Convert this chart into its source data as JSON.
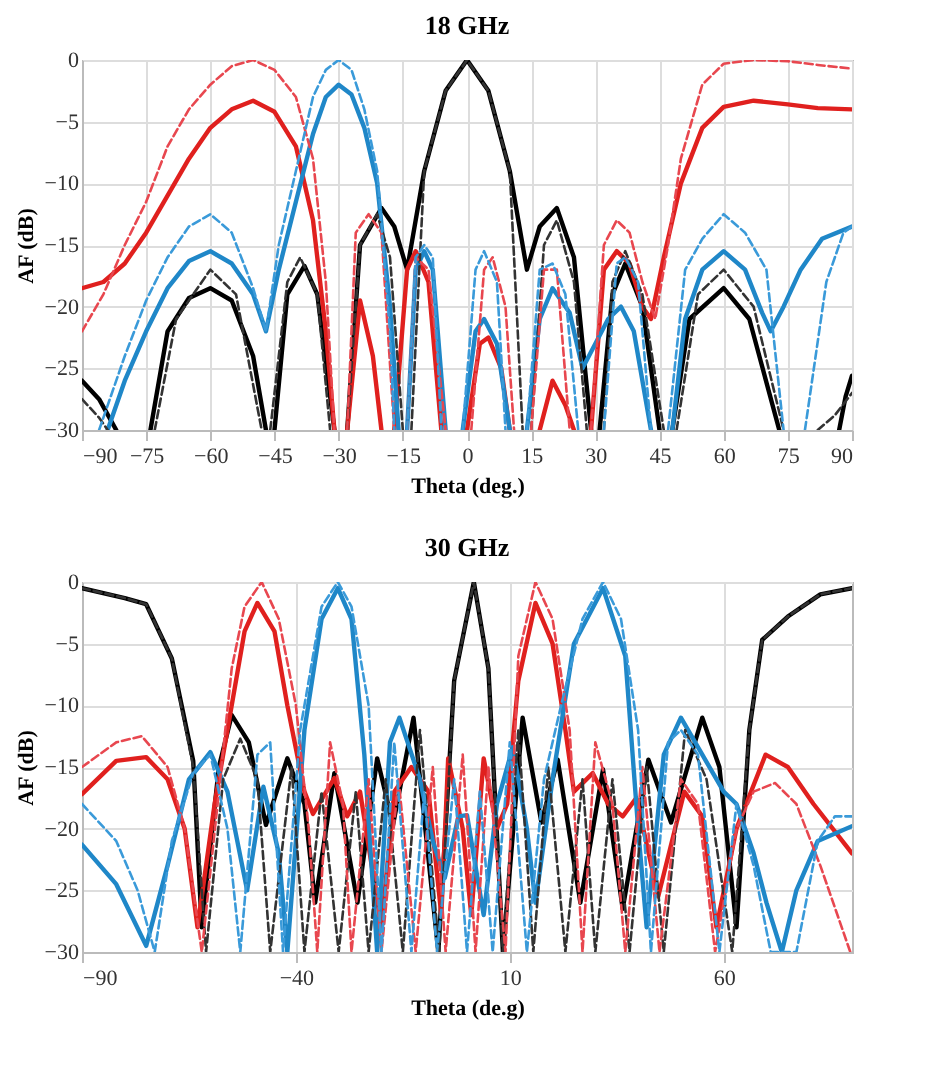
{
  "chart_data": [
    {
      "type": "line",
      "title": "18 GHz",
      "xlabel": "Theta (deg.)",
      "ylabel": "AF (dB)",
      "xlim": [
        -90,
        90
      ],
      "xticks": [
        -90,
        -75,
        -60,
        -45,
        -30,
        -15,
        0,
        15,
        30,
        45,
        60,
        75,
        90
      ],
      "ylim": [
        -30,
        0
      ],
      "yticks": [
        -30,
        -25,
        -20,
        -15,
        -10,
        -5,
        0
      ],
      "grid": true,
      "marker": "none",
      "series": [
        {
          "color": "#000000",
          "line_style": "solid",
          "x": [
            -90,
            -86,
            -82,
            -81,
            -74,
            -70,
            -65,
            -60,
            -55,
            -50,
            -47,
            -46,
            -45,
            -42,
            -38,
            -35,
            -31,
            -30,
            -28,
            -25,
            -20,
            -17,
            -14,
            -10,
            -5,
            0,
            5,
            10,
            14,
            17,
            21,
            25,
            29,
            30,
            31,
            34,
            37,
            41,
            45,
            46,
            48,
            52,
            60,
            66,
            73,
            74,
            87,
            88.5,
            90
          ],
          "values": [
            -26,
            -27.5,
            -30,
            null,
            -30,
            -22,
            -19.3,
            -18.5,
            -19.5,
            -24,
            -30,
            null,
            -30,
            -19,
            -16.7,
            -19,
            -30,
            null,
            -30,
            -15,
            -12,
            -13.5,
            -17,
            -9,
            -2.5,
            0,
            -2.5,
            -9,
            -17,
            -13.5,
            -12,
            -16,
            -30,
            null,
            -30,
            -19,
            -16.5,
            -20,
            -30,
            null,
            -30,
            -21,
            -18.5,
            -21,
            -30,
            null,
            -30,
            -27.3,
            -25.6
          ]
        },
        {
          "color": "#333333",
          "line_style": "dashed",
          "x": [
            -90,
            -86,
            -84,
            -83,
            -73,
            -68,
            -60,
            -54,
            -48,
            -47,
            -46,
            -42,
            -39,
            -35,
            -32,
            -31,
            -28,
            -25,
            -21,
            -18,
            -15,
            -14,
            -13,
            -10,
            -5,
            0,
            5,
            10,
            13,
            14,
            15,
            18,
            21,
            25,
            28,
            29,
            32,
            34,
            37,
            41,
            46,
            47,
            49,
            54,
            60,
            67,
            74,
            75,
            82,
            86,
            90
          ],
          "values": [
            -27.5,
            -29,
            -30,
            null,
            -30,
            -21,
            -17,
            -19,
            -30,
            null,
            -30,
            -18,
            -16,
            -19,
            -30,
            null,
            -30,
            -15,
            -12.5,
            -16,
            -30,
            null,
            -30,
            -9,
            -2.5,
            0,
            -2.5,
            -9,
            -30,
            null,
            -30,
            -15,
            -13,
            -18,
            -30,
            null,
            -30,
            -18,
            -15.5,
            -19,
            -30,
            null,
            -30,
            -19,
            -17,
            -20,
            -30,
            null,
            -30,
            -28.8,
            -27
          ]
        },
        {
          "color": "#e0201e",
          "line_style": "solid",
          "x": [
            -90,
            -85,
            -80,
            -75,
            -70,
            -65,
            -60,
            -55,
            -50,
            -45,
            -40,
            -36,
            -33,
            -31,
            -30,
            -28,
            -25,
            -22,
            -20,
            -19,
            -17,
            -14,
            -12,
            -9,
            -6,
            -5,
            0,
            3,
            5,
            8,
            10,
            11,
            17,
            20,
            23,
            25,
            26,
            29,
            32,
            35,
            38,
            41,
            43,
            46,
            50,
            55,
            60,
            67,
            75,
            82,
            90
          ],
          "values": [
            -18.5,
            -18,
            -16.5,
            -14,
            -11,
            -8,
            -5.5,
            -4,
            -3.3,
            -4.2,
            -7,
            -13,
            -22,
            -30,
            null,
            -30,
            -19.5,
            -24,
            -30,
            null,
            -30,
            -17,
            -15.5,
            -18,
            -30,
            null,
            -30,
            -23,
            -22.5,
            -25,
            -30,
            null,
            -30,
            -26,
            -28,
            -30,
            null,
            -30,
            -17,
            -15.5,
            -16.5,
            -20,
            -21,
            -16,
            -10,
            -5.5,
            -3.8,
            -3.3,
            -3.6,
            -3.9,
            -4
          ]
        },
        {
          "color": "#e8474f",
          "line_style": "dashed",
          "x": [
            -90,
            -85,
            -80,
            -75,
            -70,
            -65,
            -60,
            -55,
            -50,
            -45,
            -40,
            -36,
            -33,
            -31,
            -30,
            -28,
            -26,
            -23,
            -20,
            -17,
            -16,
            -14,
            -12,
            -9,
            -5,
            -4,
            1,
            4,
            6,
            9,
            11,
            12,
            15,
            18,
            21,
            24,
            25,
            29,
            32,
            35,
            38,
            41,
            44,
            47,
            50,
            55,
            60,
            67,
            75,
            82,
            90
          ],
          "values": [
            -22,
            -19,
            -15,
            -11.5,
            -7,
            -4,
            -2,
            -0.5,
            0,
            -0.8,
            -3,
            -8,
            -18,
            -30,
            null,
            -30,
            -14,
            -12.5,
            -14,
            -30,
            null,
            -30,
            -16,
            -17,
            -30,
            null,
            -30,
            -17,
            -16,
            -20,
            -30,
            null,
            -30,
            -17,
            -17,
            -30,
            null,
            -30,
            -15,
            -13,
            -14,
            -18,
            -21,
            -15,
            -8,
            -2,
            -0.3,
            0,
            -0.1,
            -0.4,
            -0.7
          ]
        },
        {
          "color": "#1f87c8",
          "line_style": "solid",
          "x": [
            -84,
            -80,
            -75,
            -70,
            -65,
            -60,
            -55,
            -50,
            -47,
            -44,
            -40,
            -36,
            -33,
            -30,
            -27,
            -24,
            -21,
            -18,
            -16,
            -15,
            -14,
            -12,
            -10,
            -8,
            -5,
            -4,
            -1,
            2,
            4,
            7,
            10,
            11,
            14,
            17,
            20,
            24,
            27,
            30,
            33,
            36,
            39,
            43,
            44,
            48,
            51,
            55,
            60,
            65,
            69,
            71,
            74,
            78,
            83,
            90
          ],
          "values": [
            -30,
            -26,
            -22,
            -18.5,
            -16.3,
            -15.5,
            -16.5,
            -19,
            -22,
            -17,
            -11.5,
            -6,
            -3,
            -2,
            -2.8,
            -5.5,
            -10,
            -20,
            -30,
            null,
            -30,
            -17,
            -15.5,
            -17,
            -30,
            null,
            -30,
            -22,
            -21,
            -23,
            -30,
            null,
            -30,
            -21,
            -18.5,
            -20.5,
            -25,
            -23,
            -21,
            -20,
            -22,
            -30,
            null,
            -30,
            -21,
            -17,
            -15.5,
            -17,
            -20.5,
            -22,
            -20,
            -17,
            -14.5,
            -13.5
          ]
        },
        {
          "color": "#3a9ad9",
          "line_style": "dashed",
          "x": [
            -86,
            -80,
            -75,
            -70,
            -65,
            -60,
            -55,
            -50,
            -47,
            -44,
            -40,
            -36,
            -33,
            -30,
            -27,
            -24,
            -21,
            -18,
            -17,
            -16,
            -14,
            -12,
            -10,
            -8,
            -6,
            -5,
            -1,
            2,
            4,
            7,
            9,
            10,
            14,
            17,
            20,
            23,
            26,
            27,
            32,
            35,
            37,
            40,
            43,
            44,
            47,
            51,
            55,
            60,
            65,
            70,
            74,
            75,
            79,
            84,
            88,
            90
          ],
          "values": [
            -30,
            -24,
            -19.5,
            -16,
            -13.5,
            -12.5,
            -14,
            -18.5,
            -22,
            -15,
            -9,
            -3,
            -0.8,
            0,
            -0.8,
            -4,
            -9,
            -22,
            -30,
            null,
            -30,
            -16,
            -15,
            -16,
            -30,
            null,
            -30,
            -17,
            -15.5,
            -18,
            -30,
            null,
            -30,
            -17,
            -16.5,
            -19,
            -30,
            null,
            -30,
            -16.5,
            -16,
            -18,
            -30,
            null,
            -30,
            -17,
            -14.5,
            -12.5,
            -14,
            -17,
            -30,
            null,
            -30,
            -18,
            -14,
            -13.5
          ]
        }
      ]
    },
    {
      "type": "line",
      "title": "30 GHz",
      "xlabel": "Theta (de.g)",
      "ylabel": "AF (dB)",
      "xlim": [
        -90,
        90
      ],
      "xticks": [
        -90,
        -40,
        10,
        60
      ],
      "ylim": [
        -30,
        0
      ],
      "yticks": [
        -30,
        -25,
        -20,
        -15,
        -10,
        -5,
        0
      ],
      "grid": true,
      "marker": "none",
      "series": [
        {
          "color": "#000000",
          "line_style": "solid",
          "x": [
            -90,
            -80,
            -75,
            -69,
            -64,
            -62,
            -58,
            -55,
            -51,
            -47,
            -42,
            -38,
            -35.5,
            -31,
            -25.6,
            -21,
            -17.3,
            -12.5,
            -6.7,
            -3,
            1.6,
            5,
            8.4,
            13,
            17.4,
            21.2,
            26.5,
            31.8,
            36.4,
            42.4,
            47.7,
            55,
            59,
            63,
            66,
            69,
            75,
            82.6,
            90
          ],
          "values": [
            -0.5,
            -1.3,
            -1.8,
            -6.2,
            -14.5,
            -28,
            -15,
            -10.8,
            -13,
            -19.7,
            -14.3,
            -18,
            -26,
            -15.5,
            -26,
            -14.3,
            -19.7,
            -11,
            -30,
            -8,
            0,
            -7,
            -30,
            -11,
            -19.5,
            -14.4,
            -26,
            -15.2,
            -26.5,
            -14.4,
            -19.5,
            -11,
            -15,
            -28,
            -12,
            -4.7,
            -2.8,
            -1,
            -0.5
          ]
        },
        {
          "color": "#333333",
          "line_style": "dashed",
          "x": [
            -90,
            -80,
            -75,
            -69,
            -64,
            -61,
            -57,
            -53,
            -49,
            -46,
            -41,
            -38,
            -34,
            -30,
            -26,
            -23,
            -19,
            -15,
            -11,
            -6.5,
            -3,
            1.6,
            5,
            8.4,
            12,
            15.5,
            19,
            23,
            27,
            30,
            34,
            38,
            42,
            46,
            51,
            56,
            62,
            66,
            69,
            75,
            82.6,
            90
          ],
          "values": [
            -0.5,
            -1.3,
            -1.8,
            -6.2,
            -15,
            -30,
            -16,
            -12.7,
            -16,
            -30,
            -15,
            -30,
            -17,
            -30,
            -17,
            -30,
            -16,
            -30,
            -12,
            -30,
            -8,
            0,
            -7,
            -30,
            -12,
            -30,
            -15,
            -30,
            -16,
            -30,
            -16,
            -30,
            -15,
            -30,
            -12,
            -16,
            -30,
            -12,
            -4.7,
            -2.8,
            -1,
            -0.5
          ]
        },
        {
          "color": "#e0201e",
          "line_style": "solid",
          "x": [
            -90,
            -82,
            -75,
            -70,
            -66,
            -63,
            -59,
            -55,
            -52,
            -49,
            -45,
            -42,
            -38,
            -36,
            -31,
            -28,
            -25,
            -20,
            -17,
            -13,
            -9,
            -6,
            -4.4,
            -1,
            1,
            3.9,
            7,
            9.4,
            12,
            16,
            20,
            23,
            25,
            29.4,
            33,
            36.4,
            39.6,
            44.7,
            50.8,
            55,
            58.3,
            63,
            69.8,
            75,
            81,
            90
          ],
          "values": [
            -17.2,
            -14.5,
            -14.2,
            -16,
            -20,
            -28,
            -18,
            -10,
            -4,
            -1.7,
            -4,
            -10,
            -17,
            -18.8,
            -15.9,
            -19,
            -17,
            -28,
            -17,
            -15,
            -17,
            -27,
            -14.3,
            -20,
            -27,
            -14.3,
            -20,
            -18,
            -8,
            -1.7,
            -5,
            -12,
            -17,
            -15.5,
            -18,
            -19,
            -17.5,
            -25.5,
            -17,
            -19,
            -28,
            -20,
            -14,
            -15,
            -18,
            -22
          ]
        },
        {
          "color": "#e8474f",
          "line_style": "dashed",
          "x": [
            -90,
            -82,
            -76,
            -70,
            -66,
            -62,
            -58,
            -55,
            -52,
            -48,
            -44,
            -40,
            -37,
            -35,
            -32,
            -29,
            -27,
            -23,
            -20,
            -16,
            -12,
            -8,
            -5,
            -1,
            2,
            5,
            9,
            12,
            16,
            20,
            24,
            27,
            30,
            34,
            37,
            41,
            45,
            50,
            54,
            58,
            63,
            67,
            72,
            77,
            82.6,
            89.6
          ],
          "values": [
            -15,
            -13,
            -12.5,
            -15,
            -20,
            -30,
            -17,
            -7,
            -2,
            0,
            -3,
            -10,
            -20,
            -30,
            -13,
            -18,
            -30,
            -16,
            -30,
            -16,
            -30,
            -15,
            -30,
            -14,
            -30,
            -15,
            -30,
            -6,
            0,
            -3,
            -12,
            -30,
            -13,
            -18,
            -30,
            -15,
            -30,
            -16,
            -18,
            -30,
            -20,
            -17,
            -16.3,
            -18,
            -23,
            -30
          ]
        },
        {
          "color": "#1f87c8",
          "line_style": "solid",
          "x": [
            -90,
            -82,
            -75,
            -70,
            -65,
            -60,
            -56,
            -51.4,
            -47.6,
            -44,
            -42,
            -38,
            -34,
            -30.2,
            -27,
            -24,
            -21,
            -18,
            -15.8,
            -11,
            -8,
            -5.2,
            -2,
            0,
            3.9,
            7,
            10.7,
            14,
            16,
            20,
            25,
            31.8,
            37,
            40,
            42,
            46,
            50,
            55,
            60,
            63,
            67,
            70,
            73.6,
            77,
            82,
            90
          ],
          "values": [
            -21.3,
            -24.5,
            -29.5,
            -23,
            -16,
            -13.8,
            -17,
            -25,
            -16.6,
            -22,
            -30,
            -12,
            -3,
            -0.5,
            -3,
            -14,
            -30,
            -13,
            -11,
            -16,
            -21,
            -24,
            -19,
            -18.9,
            -27,
            -18,
            -13.4,
            -20,
            -26,
            -16,
            -5,
            -0.5,
            -6,
            -20,
            -28,
            -14,
            -11,
            -14,
            -17,
            -18,
            -22,
            -26,
            -30,
            -25,
            -21,
            -19.8
          ]
        },
        {
          "color": "#3a9ad9",
          "line_style": "dashed",
          "x": [
            -90,
            -82,
            -77,
            -73,
            -69,
            -64,
            -60,
            -56,
            -53,
            -49,
            -46,
            -43,
            -39,
            -34,
            -30.2,
            -27,
            -23,
            -20,
            -17,
            -13,
            -10,
            -7,
            -3,
            0,
            3,
            6,
            10,
            14,
            18,
            22,
            27,
            31.8,
            36,
            40,
            43,
            47,
            50,
            54,
            59,
            63,
            67,
            71,
            77,
            82,
            86,
            90
          ],
          "values": [
            -18,
            -21,
            -25,
            -30,
            -21,
            -15.5,
            -14,
            -20,
            -30,
            -14,
            -13,
            -30,
            -12,
            -2,
            0,
            -2,
            -10,
            -30,
            -13,
            -30,
            -17,
            -30,
            -16,
            -30,
            -17,
            -30,
            -13,
            -30,
            -16,
            -10,
            -3,
            0,
            -3,
            -12,
            -30,
            -13,
            -12,
            -14,
            -30,
            -18,
            -23,
            -30,
            -30,
            -21,
            -19,
            -19
          ]
        }
      ]
    }
  ]
}
